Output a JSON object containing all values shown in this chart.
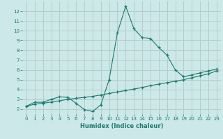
{
  "xlabel": "Humidex (Indice chaleur)",
  "xlim": [
    -0.5,
    23.5
  ],
  "ylim": [
    1.5,
    13.0
  ],
  "yticks": [
    2,
    3,
    4,
    5,
    6,
    7,
    8,
    9,
    10,
    11,
    12
  ],
  "xticks": [
    0,
    1,
    2,
    3,
    4,
    5,
    6,
    7,
    8,
    9,
    10,
    11,
    12,
    13,
    14,
    15,
    16,
    17,
    18,
    19,
    20,
    21,
    22,
    23
  ],
  "bg_color": "#cce8e8",
  "grid_color": "#b8cccc",
  "line_color": "#1a7a6e",
  "line1_x": [
    0,
    1,
    2,
    3,
    4,
    5,
    6,
    7,
    8,
    9,
    10,
    11,
    12,
    13,
    14,
    15,
    16,
    17,
    18,
    19,
    20,
    21,
    22,
    23
  ],
  "line1_y": [
    2.3,
    2.7,
    2.7,
    3.0,
    3.25,
    3.2,
    2.6,
    1.95,
    1.75,
    2.45,
    5.0,
    9.8,
    12.5,
    10.2,
    9.3,
    9.2,
    8.3,
    7.5,
    6.0,
    5.3,
    5.5,
    5.7,
    5.9,
    6.1
  ],
  "line2_x": [
    0,
    1,
    2,
    3,
    4,
    5,
    6,
    7,
    8,
    9,
    10,
    11,
    12,
    13,
    14,
    15,
    16,
    17,
    18,
    19,
    20,
    21,
    22,
    23
  ],
  "line2_y": [
    2.3,
    2.5,
    2.6,
    2.72,
    2.85,
    3.0,
    3.1,
    3.2,
    3.3,
    3.45,
    3.6,
    3.75,
    3.9,
    4.05,
    4.2,
    4.4,
    4.55,
    4.7,
    4.85,
    5.0,
    5.2,
    5.4,
    5.6,
    5.9
  ],
  "tick_fontsize": 5.0,
  "xlabel_fontsize": 6.0
}
